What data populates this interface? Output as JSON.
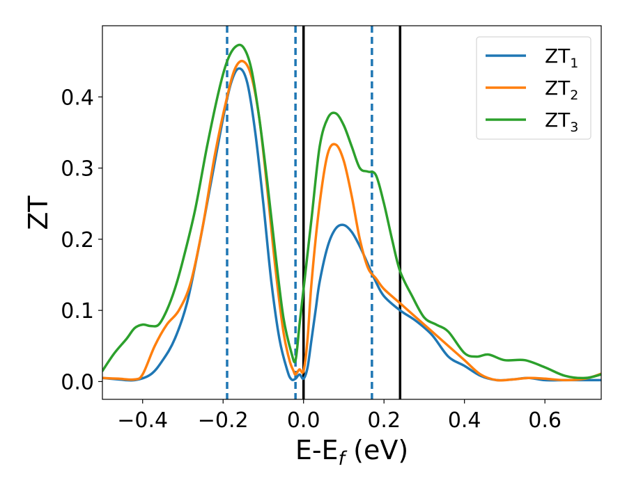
{
  "chart_data": {
    "type": "line",
    "xlabel_main": "E-E",
    "xlabel_sub": "f",
    "xlabel_unit": " (eV)",
    "ylabel": "ZT",
    "xlim": [
      -0.5,
      0.74
    ],
    "ylim": [
      -0.025,
      0.5
    ],
    "xticks": [
      -0.4,
      -0.2,
      0.0,
      0.2,
      0.4,
      0.6
    ],
    "xtick_labels": [
      "−0.4",
      "−0.2",
      "0.0",
      "0.2",
      "0.4",
      "0.6"
    ],
    "yticks": [
      0.0,
      0.1,
      0.2,
      0.3,
      0.4
    ],
    "ytick_labels": [
      "0.0",
      "0.1",
      "0.2",
      "0.3",
      "0.4"
    ],
    "grid": false,
    "legend_position": "top-right",
    "vlines_dashed": {
      "color": "#1f77b4",
      "x": [
        -0.19,
        -0.02,
        0.17
      ]
    },
    "vlines_solid": {
      "color": "#000000",
      "x": [
        0.0,
        0.24
      ]
    },
    "series": [
      {
        "name": "ZT",
        "sub": "1",
        "color": "#1f77b4",
        "x": [
          -0.5,
          -0.46,
          -0.42,
          -0.38,
          -0.35,
          -0.32,
          -0.29,
          -0.26,
          -0.23,
          -0.2,
          -0.18,
          -0.16,
          -0.14,
          -0.12,
          -0.1,
          -0.08,
          -0.06,
          -0.04,
          -0.03,
          -0.02,
          -0.01,
          0.0,
          0.01,
          0.02,
          0.03,
          0.04,
          0.06,
          0.08,
          0.1,
          0.12,
          0.14,
          0.16,
          0.18,
          0.2,
          0.24,
          0.28,
          0.32,
          0.36,
          0.4,
          0.44,
          0.48,
          0.52,
          0.56,
          0.6,
          0.65,
          0.7,
          0.74
        ],
        "y": [
          0.005,
          0.003,
          0.002,
          0.01,
          0.03,
          0.06,
          0.11,
          0.19,
          0.28,
          0.37,
          0.42,
          0.44,
          0.42,
          0.35,
          0.25,
          0.14,
          0.06,
          0.015,
          0.003,
          0.004,
          0.01,
          0.004,
          0.02,
          0.06,
          0.1,
          0.14,
          0.19,
          0.215,
          0.22,
          0.21,
          0.19,
          0.165,
          0.14,
          0.12,
          0.1,
          0.085,
          0.065,
          0.035,
          0.022,
          0.008,
          0.002,
          0.003,
          0.005,
          0.002,
          0.002,
          0.002,
          0.002
        ]
      },
      {
        "name": "ZT",
        "sub": "2",
        "color": "#ff7f0e",
        "x": [
          -0.5,
          -0.46,
          -0.42,
          -0.4,
          -0.37,
          -0.34,
          -0.31,
          -0.28,
          -0.25,
          -0.22,
          -0.19,
          -0.17,
          -0.15,
          -0.13,
          -0.11,
          -0.09,
          -0.07,
          -0.05,
          -0.035,
          -0.025,
          -0.02,
          -0.01,
          0.0,
          0.01,
          0.02,
          0.04,
          0.06,
          0.08,
          0.1,
          0.12,
          0.14,
          0.16,
          0.18,
          0.2,
          0.24,
          0.28,
          0.32,
          0.36,
          0.4,
          0.44,
          0.48,
          0.52,
          0.56,
          0.6,
          0.65,
          0.7,
          0.74
        ],
        "y": [
          0.005,
          0.004,
          0.003,
          0.01,
          0.05,
          0.08,
          0.1,
          0.14,
          0.22,
          0.32,
          0.4,
          0.44,
          0.45,
          0.43,
          0.37,
          0.27,
          0.16,
          0.07,
          0.03,
          0.015,
          0.01,
          0.017,
          0.015,
          0.06,
          0.14,
          0.25,
          0.32,
          0.333,
          0.31,
          0.26,
          0.2,
          0.16,
          0.145,
          0.13,
          0.11,
          0.09,
          0.07,
          0.05,
          0.03,
          0.01,
          0.002,
          0.003,
          0.005,
          0.004,
          0.002,
          0.004,
          0.011
        ]
      },
      {
        "name": "ZT",
        "sub": "3",
        "color": "#2ca02c",
        "x": [
          -0.5,
          -0.47,
          -0.44,
          -0.42,
          -0.4,
          -0.38,
          -0.36,
          -0.34,
          -0.32,
          -0.3,
          -0.27,
          -0.24,
          -0.21,
          -0.19,
          -0.17,
          -0.15,
          -0.13,
          -0.11,
          -0.09,
          -0.07,
          -0.05,
          -0.03,
          -0.02,
          -0.01,
          0.0,
          0.02,
          0.04,
          0.06,
          0.08,
          0.1,
          0.12,
          0.14,
          0.16,
          0.18,
          0.2,
          0.22,
          0.24,
          0.27,
          0.3,
          0.33,
          0.36,
          0.4,
          0.43,
          0.46,
          0.5,
          0.55,
          0.6,
          0.65,
          0.7,
          0.74
        ],
        "y": [
          0.015,
          0.04,
          0.06,
          0.075,
          0.08,
          0.078,
          0.08,
          0.1,
          0.13,
          0.17,
          0.24,
          0.33,
          0.41,
          0.45,
          0.47,
          0.47,
          0.44,
          0.37,
          0.28,
          0.18,
          0.09,
          0.04,
          0.03,
          0.08,
          0.13,
          0.23,
          0.33,
          0.37,
          0.377,
          0.36,
          0.33,
          0.3,
          0.295,
          0.29,
          0.25,
          0.2,
          0.155,
          0.12,
          0.09,
          0.08,
          0.07,
          0.04,
          0.035,
          0.038,
          0.03,
          0.03,
          0.02,
          0.008,
          0.005,
          0.01
        ]
      }
    ]
  }
}
